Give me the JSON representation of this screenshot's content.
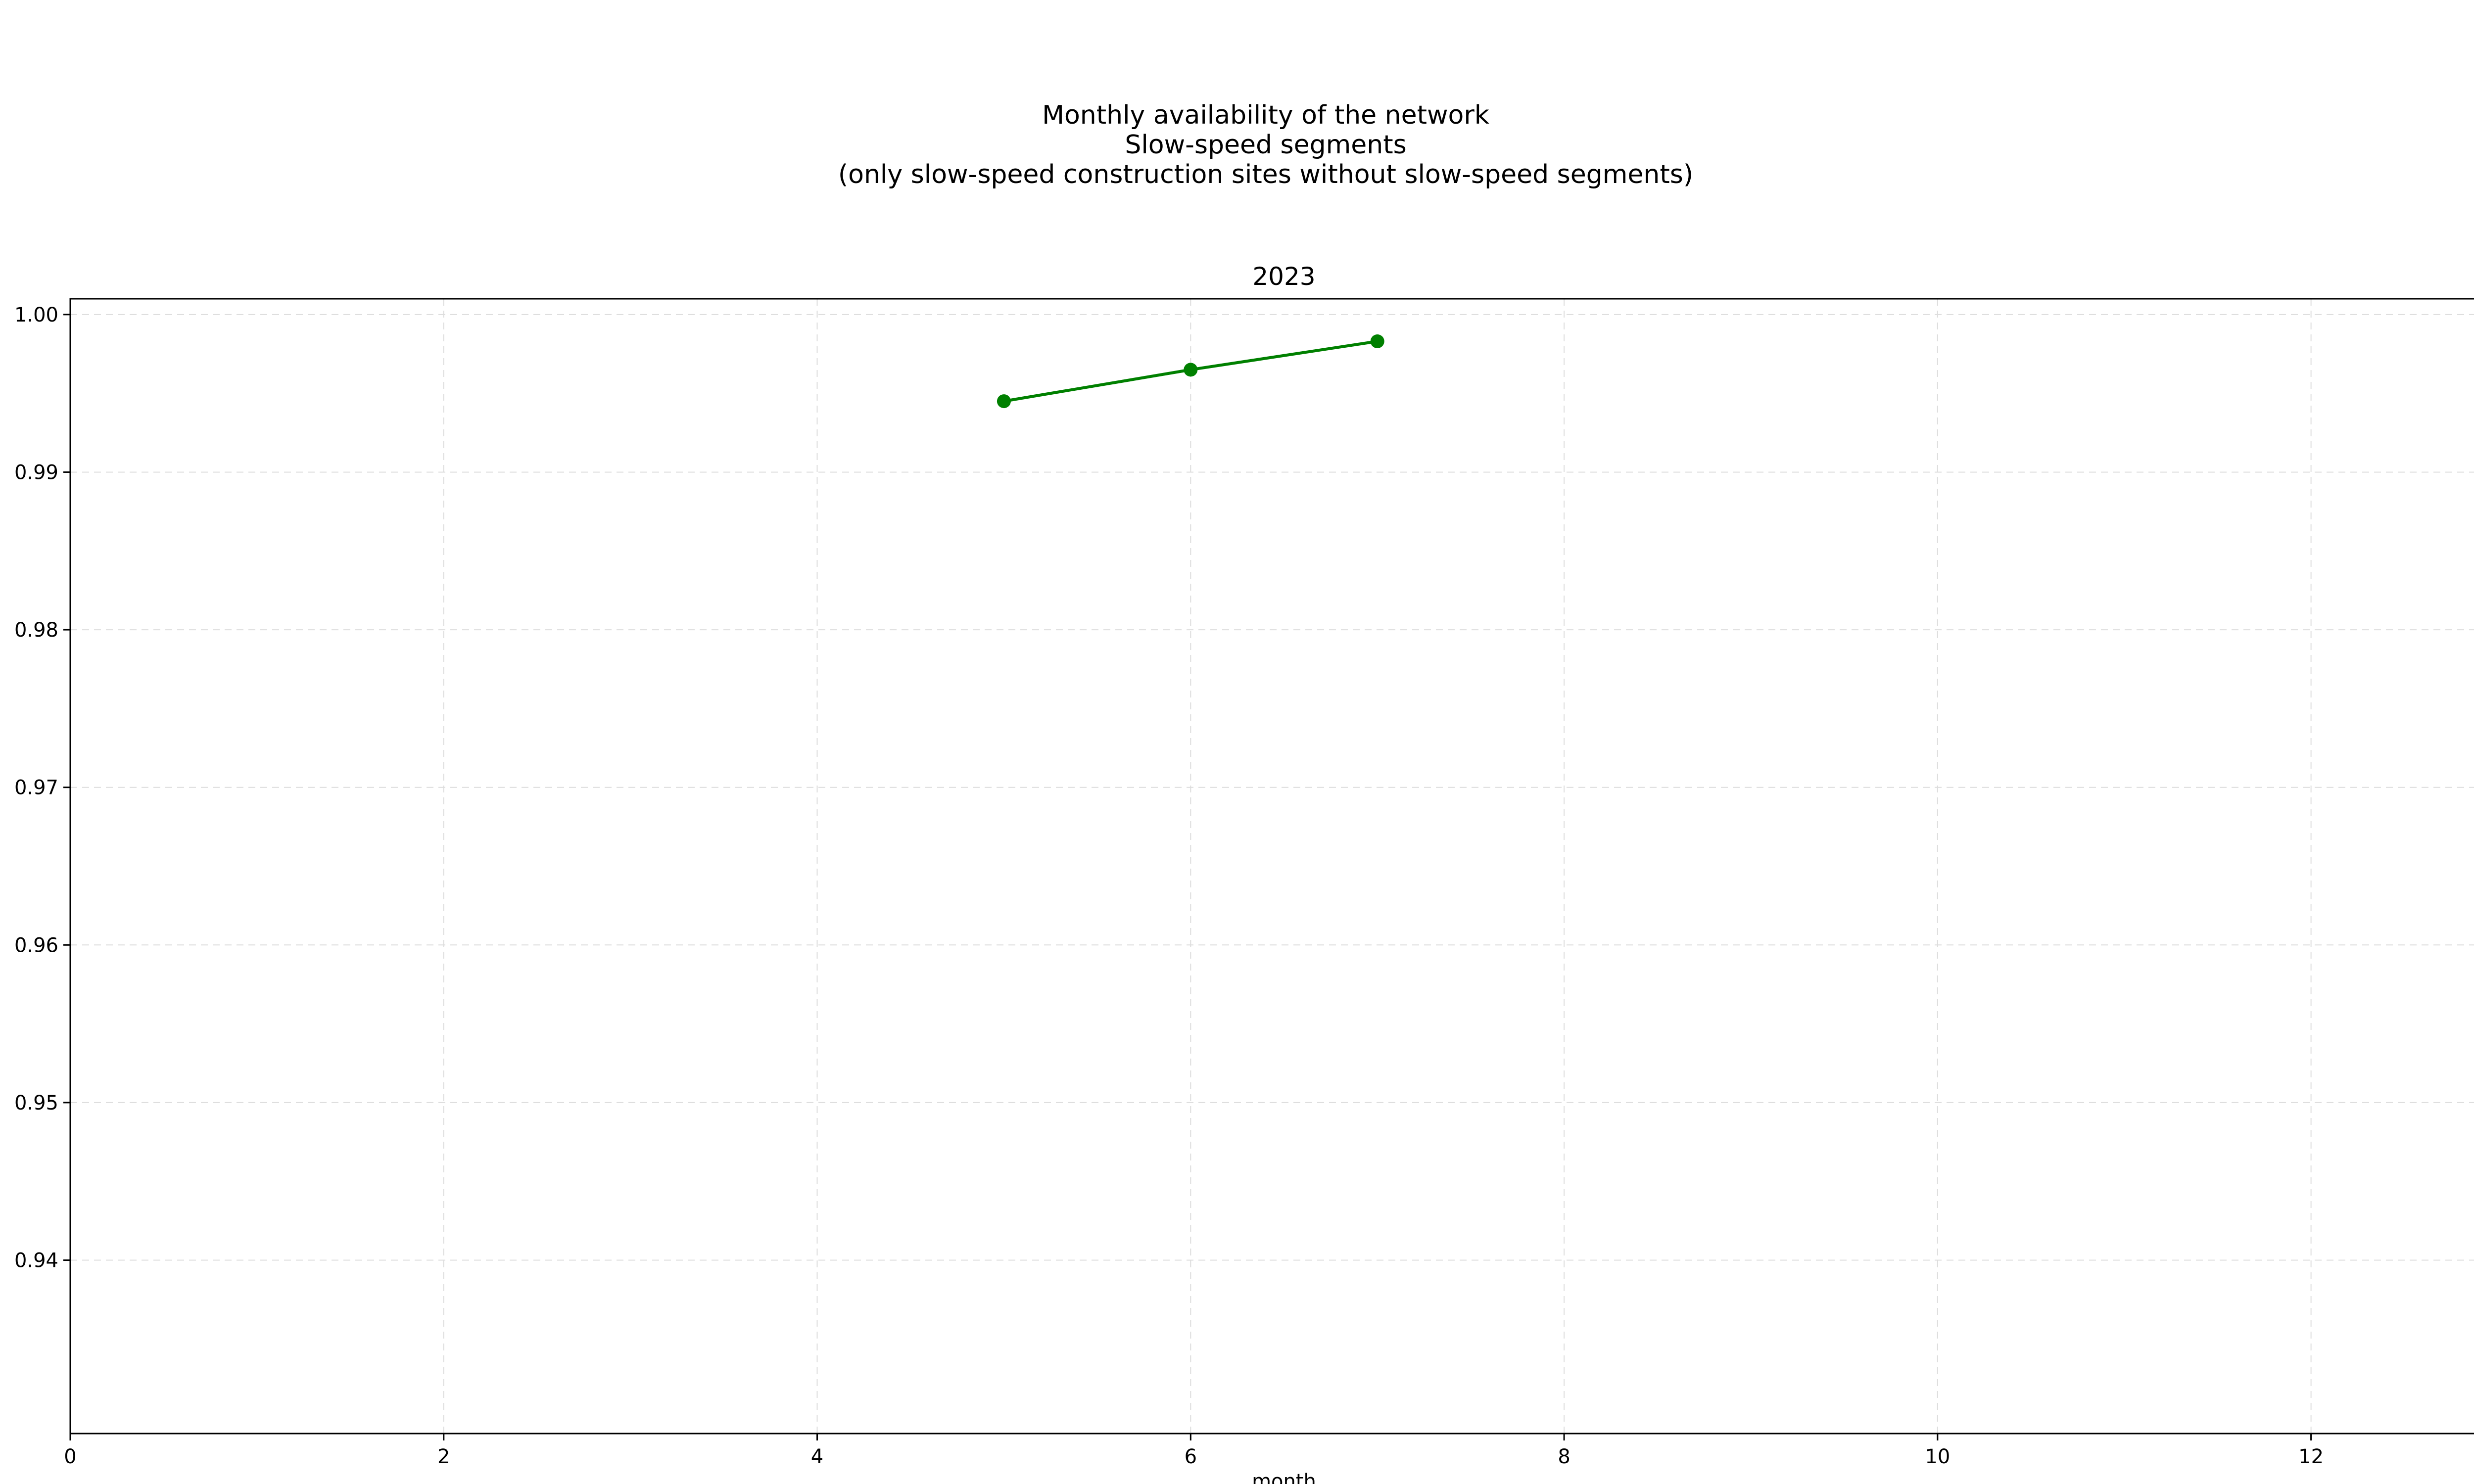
{
  "chart_data": {
    "type": "line",
    "title": [
      "Monthly availability of the network",
      "Slow-speed segments",
      "(only slow-speed construction sites without slow-speed segments)"
    ],
    "subplot_title": "2023",
    "xlabel": "month",
    "ylabel": "",
    "xlim": [
      0,
      13
    ],
    "ylim": [
      0.929,
      1.001
    ],
    "xticks": [
      0,
      2,
      4,
      6,
      8,
      10,
      12
    ],
    "xtick_labels": [
      "0",
      "2",
      "4",
      "6",
      "8",
      "10",
      "12"
    ],
    "yticks": [
      0.94,
      0.95,
      0.96,
      0.97,
      0.98,
      0.99,
      1.0
    ],
    "ytick_labels": [
      "0.94",
      "0.95",
      "0.96",
      "0.97",
      "0.98",
      "0.99",
      "1.00"
    ],
    "grid": true,
    "series": [
      {
        "color": "#008000",
        "marker": "circle",
        "x": [
          5,
          6,
          7
        ],
        "y": [
          0.9945,
          0.9965,
          0.9983
        ]
      }
    ]
  }
}
